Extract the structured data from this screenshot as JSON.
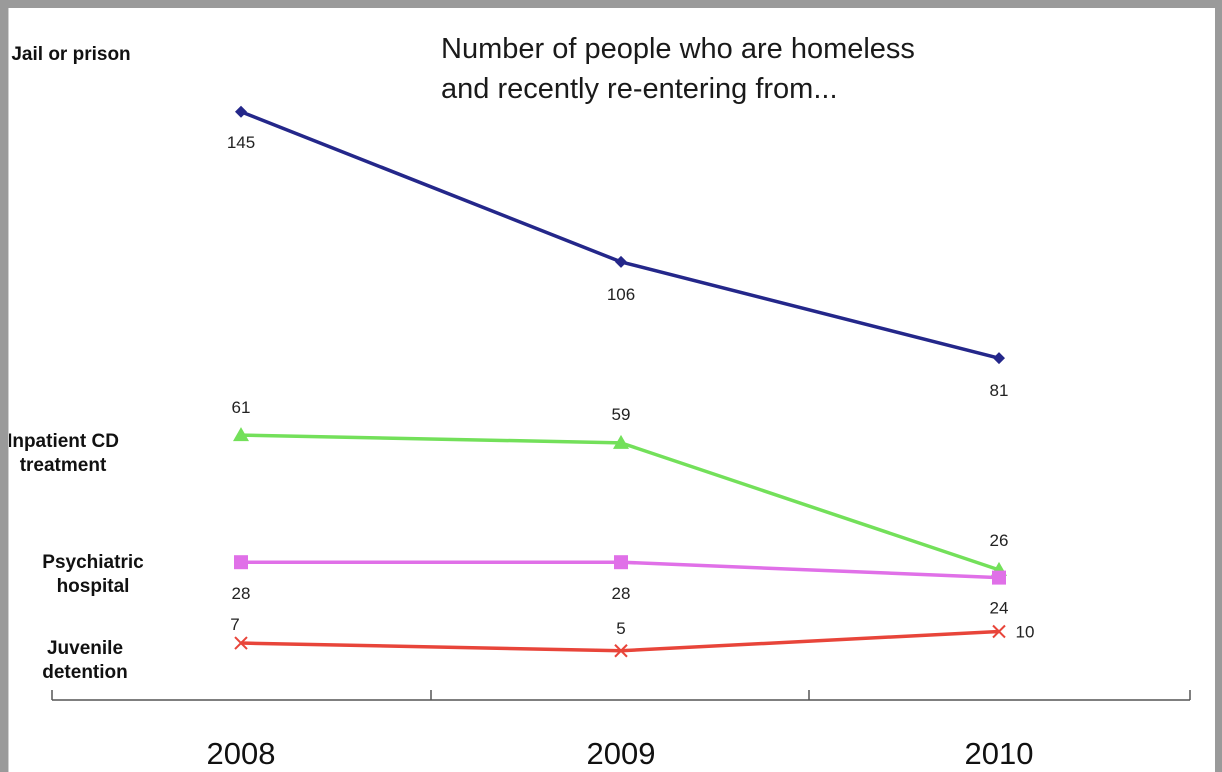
{
  "chart_data": {
    "type": "line",
    "title_lines": [
      "Number of people who are homeless",
      "and recently re-entering from..."
    ],
    "categories": [
      "2008",
      "2009",
      "2010"
    ],
    "grid": false,
    "series": [
      {
        "name_lines": [
          "Jail or prison"
        ],
        "values": [
          145,
          106,
          81
        ],
        "labels": [
          "145",
          "106",
          "81"
        ],
        "color": "#24278a",
        "marker": "diamond"
      },
      {
        "name_lines": [
          "Inpatient CD",
          "treatment"
        ],
        "values": [
          61,
          59,
          26
        ],
        "labels": [
          "61",
          "59",
          "26"
        ],
        "color": "#73e05a",
        "marker": "triangle"
      },
      {
        "name_lines": [
          "Psychiatric",
          "hospital"
        ],
        "values": [
          28,
          28,
          24
        ],
        "labels": [
          "28",
          "28",
          "24"
        ],
        "color": "#e070e8",
        "marker": "square"
      },
      {
        "name_lines": [
          "Juvenile",
          "detention"
        ],
        "values": [
          7,
          5,
          10
        ],
        "labels": [
          "7",
          "5",
          "10"
        ],
        "color": "#e8453a",
        "marker": "x"
      }
    ]
  }
}
